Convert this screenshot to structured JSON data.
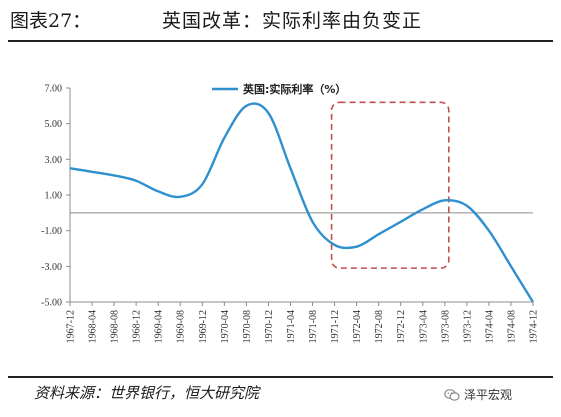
{
  "header": {
    "figure_label": "图表27：",
    "title": "英国改革：实际利率由负变正"
  },
  "footer": {
    "source": "资料来源：世界银行，恒大研究院",
    "watermark_text": "泽平宏观",
    "watermark_icon": "wechat-icon"
  },
  "colors": {
    "series": "#2f8fcf",
    "highlight_box": "#c0504d",
    "axis": "#8c8c8c"
  },
  "chart_data": {
    "type": "line",
    "title": "",
    "xlabel": "",
    "ylabel": "",
    "y_ticks": [
      "7.00",
      "5.00",
      "3.00",
      "1.00",
      "-1.00",
      "-3.00",
      "-5.00"
    ],
    "ylim": [
      -5,
      7
    ],
    "zero_line": true,
    "grid": false,
    "legend_placement": "top-center",
    "x_ticks": [
      "1967-12",
      "1968-04",
      "1968-08",
      "1968-12",
      "1969-04",
      "1969-08",
      "1969-12",
      "1970-04",
      "1970-08",
      "1970-12",
      "1971-04",
      "1971-08",
      "1971-12",
      "1972-04",
      "1972-08",
      "1972-12",
      "1973-04",
      "1973-08",
      "1973-12",
      "1974-04",
      "1974-08",
      "1974-12"
    ],
    "series": [
      {
        "name": "英国:实际利率（%）",
        "x": [
          "1967-12",
          "1968-04",
          "1968-08",
          "1968-12",
          "1969-04",
          "1969-08",
          "1969-12",
          "1970-04",
          "1970-08",
          "1970-12",
          "1971-04",
          "1971-08",
          "1971-12",
          "1972-04",
          "1972-08",
          "1972-12",
          "1973-04",
          "1973-08",
          "1973-12",
          "1974-04",
          "1974-08",
          "1974-12"
        ],
        "values": [
          2.5,
          2.3,
          2.1,
          1.8,
          1.2,
          0.9,
          1.6,
          4.2,
          6.0,
          5.6,
          2.5,
          -0.5,
          -1.8,
          -1.9,
          -1.2,
          -0.5,
          0.2,
          0.7,
          0.4,
          -1.0,
          -3.0,
          -5.0
        ]
      }
    ],
    "highlight_region": {
      "x_start": "1971-12",
      "x_end": "1973-08",
      "y_range": [
        -3.1,
        6.2
      ]
    }
  }
}
